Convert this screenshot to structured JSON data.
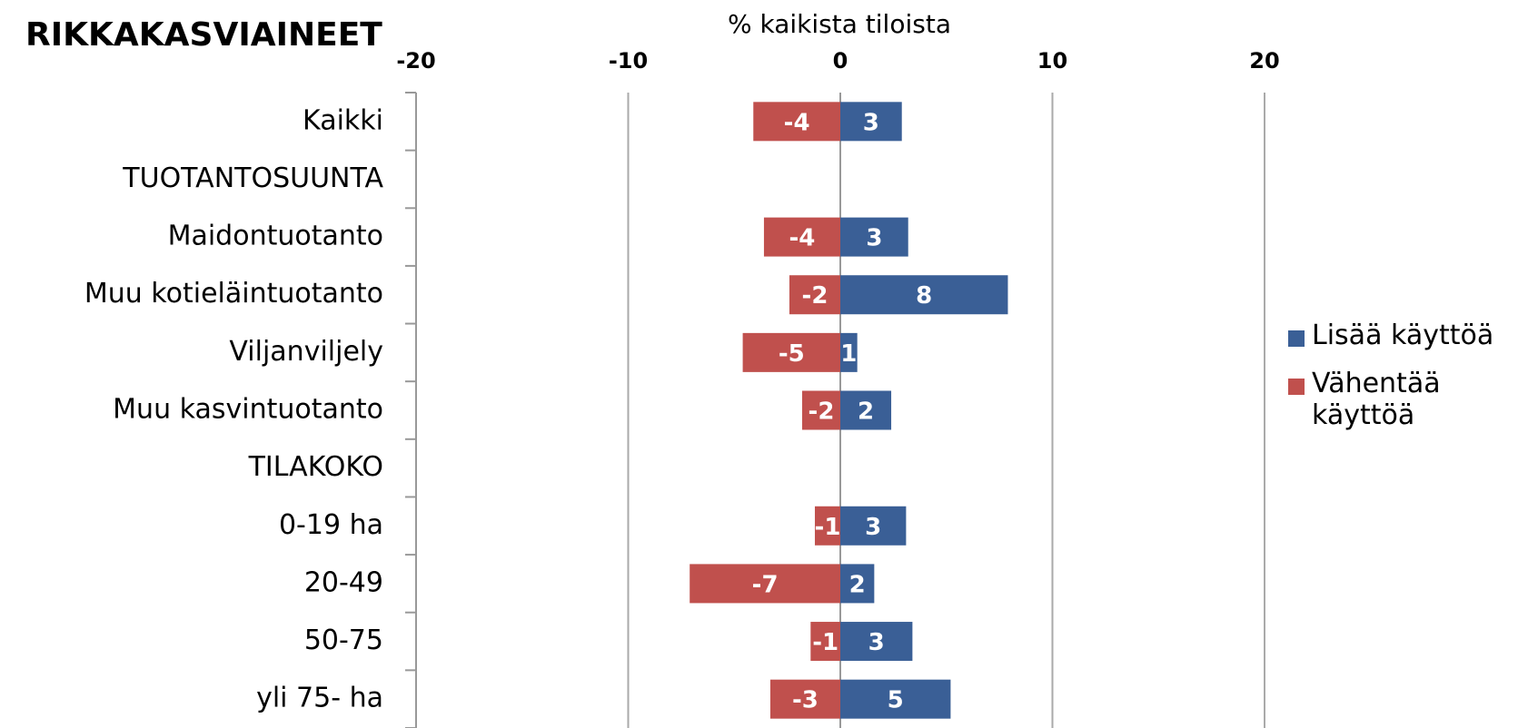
{
  "chart_data": {
    "type": "diverging-bar",
    "title": "RIKKAKASVIAINEET",
    "x_label": "% kaikista tiloista",
    "categories": [
      "Kaikki",
      "TUOTANTOSUUNTA",
      "Maidontuotanto",
      "Muu kotieläintuotanto",
      "Viljanviljely",
      "Muu kasvintuotanto",
      "TILAKOKO",
      "0-19 ha",
      "20-49",
      "50-75",
      "yli 75- ha"
    ],
    "series": [
      {
        "name": "Lisää käyttöä",
        "color": "#3a5f96",
        "values": [
          2.9,
          null,
          3.2,
          7.9,
          0.8,
          2.4,
          null,
          3.1,
          1.6,
          3.4,
          5.2
        ],
        "value_labels": [
          "3",
          null,
          "3",
          "8",
          "1",
          "2",
          null,
          "3",
          "2",
          "3",
          "5"
        ]
      },
      {
        "name": "Vähentää käyttöä",
        "color": "#c0504d",
        "values": [
          -4.1,
          null,
          -3.6,
          -2.4,
          -4.6,
          -1.8,
          null,
          -1.2,
          -7.1,
          -1.4,
          -3.3
        ],
        "value_labels": [
          "-4",
          null,
          "-4",
          "-2",
          "-5",
          "-2",
          null,
          "-1",
          "-7",
          "-1",
          "-3"
        ]
      }
    ],
    "xlim": [
      -20,
      20
    ],
    "xticks": [
      -20,
      -10,
      0,
      10,
      20
    ],
    "grid": true
  }
}
